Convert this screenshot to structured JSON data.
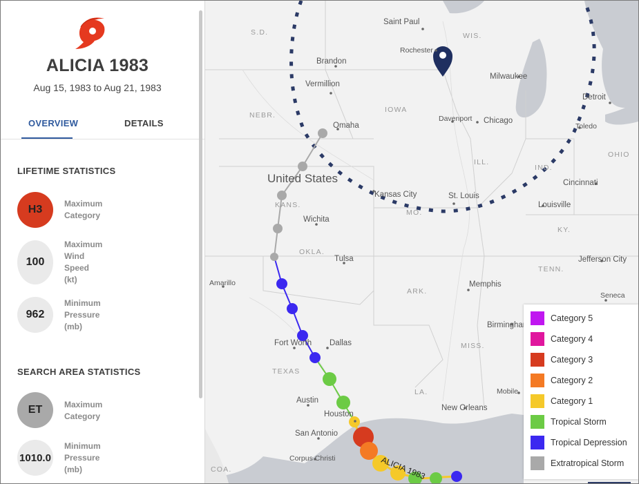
{
  "storm": {
    "name": "ALICIA 1983",
    "dates": "Aug 15, 1983 to Aug 21, 1983"
  },
  "tabs": {
    "overview": "OVERVIEW",
    "details": "DETAILS"
  },
  "lifetime": {
    "title": "LIFETIME STATISTICS",
    "category": {
      "value": "H3",
      "label": "Maximum Category",
      "color": "#d63b1f"
    },
    "wind": {
      "value": "100",
      "label": "Maximum Wind Speed (kt)"
    },
    "pressure": {
      "value": "962",
      "label": "Minimum Pressure (mb)"
    }
  },
  "search_area": {
    "title": "SEARCH AREA STATISTICS",
    "category": {
      "value": "ET",
      "label": "Maximum Category",
      "color": "#a9a9a9"
    },
    "pressure": {
      "value": "1010.0",
      "label": "Minimum Pressure (mb)"
    }
  },
  "legend": [
    {
      "label": "Category 5",
      "color": "#c017f0"
    },
    {
      "label": "Category 4",
      "color": "#e0179e"
    },
    {
      "label": "Category 3",
      "color": "#d63b1f"
    },
    {
      "label": "Category 2",
      "color": "#f47a24"
    },
    {
      "label": "Category 1",
      "color": "#f5c92a"
    },
    {
      "label": "Tropical Storm",
      "color": "#6ccb45"
    },
    {
      "label": "Tropical Depression",
      "color": "#3b28f0"
    },
    {
      "label": "Extratropical Storm",
      "color": "#a9a9a9"
    }
  ],
  "map": {
    "country": "United States",
    "track_label": "ALICIA 1983",
    "cities": [
      "Saint Paul",
      "Rochester",
      "Brandon",
      "Vermillion",
      "Milwaukee",
      "Detroit",
      "Toledo",
      "Omaha",
      "Davenport",
      "Chicago",
      "Kansas City",
      "St. Louis",
      "Cincinnati",
      "Louisville",
      "Wichita",
      "Tulsa",
      "Jefferson City",
      "Amarillo",
      "Memphis",
      "Seneca",
      "Birmingham",
      "Fort Worth",
      "Dallas",
      "Austin",
      "Houston",
      "San Antonio",
      "Corpus Christi",
      "New Orleans",
      "Mobile"
    ],
    "states": [
      "S.D.",
      "WIS.",
      "NEBR.",
      "IOWA",
      "ILL.",
      "IND.",
      "OHIO",
      "KANS.",
      "MO.",
      "KY.",
      "OKLA.",
      "ARK.",
      "TENN.",
      "TEXAS",
      "MISS.",
      "LA.",
      "COA."
    ]
  }
}
